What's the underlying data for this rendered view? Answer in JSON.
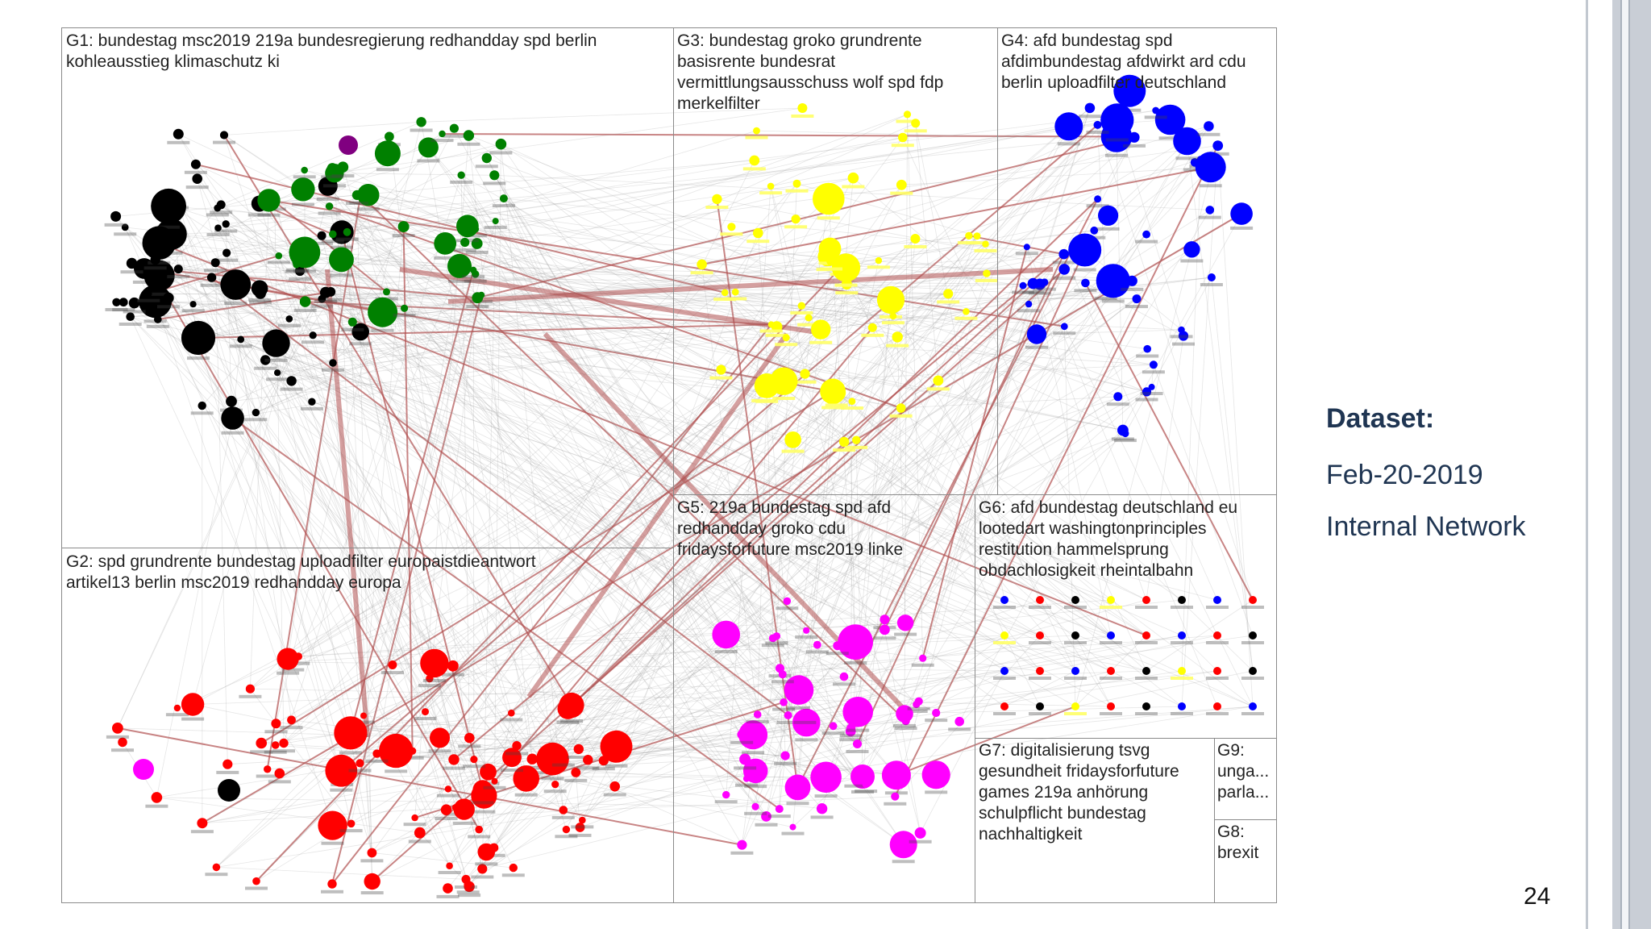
{
  "slide": {
    "dataset_heading": "Dataset:",
    "dataset_date": "Feb-20-2019",
    "dataset_type": "Internal Network",
    "page_number": "24"
  },
  "groups": [
    {
      "id": "G1",
      "label": "G1: bundestag msc2019 219a bundesregierung redhandday spd berlin\nkohleausstieg klimaschutz ki",
      "color": "#000000"
    },
    {
      "id": "G3",
      "label": "G3: bundestag groko grundrente\nbasisrente bundesrat\nvermittlungsausschuss wolf spd fdp\nmerkelfilter",
      "color": "#ffff00"
    },
    {
      "id": "G4",
      "label": "G4: afd bundestag spd\nafdimbundestag afdwirkt ard cdu\nberlin uploadfilter deutschland",
      "color": "#0000ff"
    },
    {
      "id": "G2",
      "label": "G2: spd grundrente bundestag uploadfilter europaistdieantwort\nartikel13 berlin msc2019 redhandday europa",
      "color": "#ff0000"
    },
    {
      "id": "G5",
      "label": "G5: 219a bundestag spd afd\nredhandday groko cdu\nfridaysforfuture msc2019 linke",
      "color": "#ff00ff"
    },
    {
      "id": "G6",
      "label": "G6: afd bundestag deutschland eu\nlootedart washingtonprinciples\nrestitution hammelsprung\nobdachlosigkeit rheintalbahn",
      "color": "#888888"
    },
    {
      "id": "G7",
      "label": "G7: digitalisierung tsvg\ngesundheit fridaysforfuture\ngames 219a anhörung\nschulpflicht bundestag\nnachhaltigkeit",
      "color": "#888888"
    },
    {
      "id": "G9",
      "label": "G9:\nunga...\nparla...",
      "color": "#888888"
    },
    {
      "id": "G8",
      "label": "G8:\nbrexit",
      "color": "#000000"
    }
  ],
  "node_colors": {
    "g1_dark": "#000000",
    "g1_green": "#008000",
    "g2": "#ff0000",
    "g3": "#ffff00",
    "g4": "#0000ff",
    "g5": "#ff00ff",
    "purple": "#800080",
    "edge": "#b05050"
  }
}
